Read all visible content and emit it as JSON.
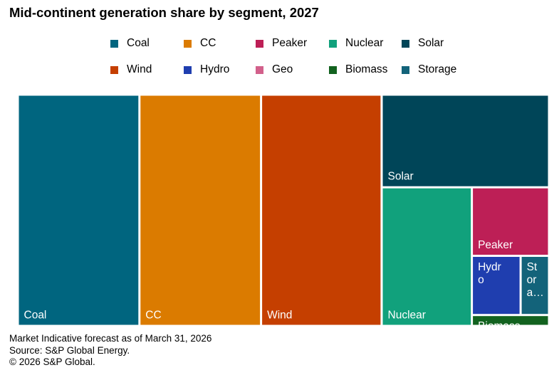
{
  "title": "Mid-continent generation share by segment, 2027",
  "footer": {
    "line1": "Market Indicative forecast as of March 31, 2026",
    "line2": "Source: S&P Global Energy.",
    "line3": "© 2026 S&P Global."
  },
  "chart_data": {
    "type": "treemap",
    "title": "Mid-continent generation share by segment, 2027",
    "legend_position": "top",
    "series": [
      {
        "name": "Coal",
        "value": 23.4,
        "color": "#00657f",
        "tile_label": "Coal"
      },
      {
        "name": "CC",
        "value": 23.4,
        "color": "#db7b00",
        "tile_label": "CC"
      },
      {
        "name": "Wind",
        "value": 23.2,
        "color": "#c53f00",
        "tile_label": "Wind"
      },
      {
        "name": "Solar",
        "value": 12.9,
        "color": "#004558",
        "tile_label": "Solar"
      },
      {
        "name": "Nuclear",
        "value": 10.4,
        "color": "#11a17c",
        "tile_label": "Nuclear"
      },
      {
        "name": "Peaker",
        "value": 4.4,
        "color": "#bd1f56",
        "tile_label": "Peaker"
      },
      {
        "name": "Hydro",
        "value": 2.4,
        "color": "#1f3eaf",
        "tile_label": "Hydr\no"
      },
      {
        "name": "Storage",
        "value": 1.4,
        "color": "#13637a",
        "tile_label": "St\nor\na…"
      },
      {
        "name": "Biomass",
        "value": 0.7,
        "color": "#12621f",
        "tile_label": "Biomass"
      },
      {
        "name": "Geo",
        "value": 0.0,
        "color": "#d2608b",
        "tile_label": ""
      }
    ]
  }
}
